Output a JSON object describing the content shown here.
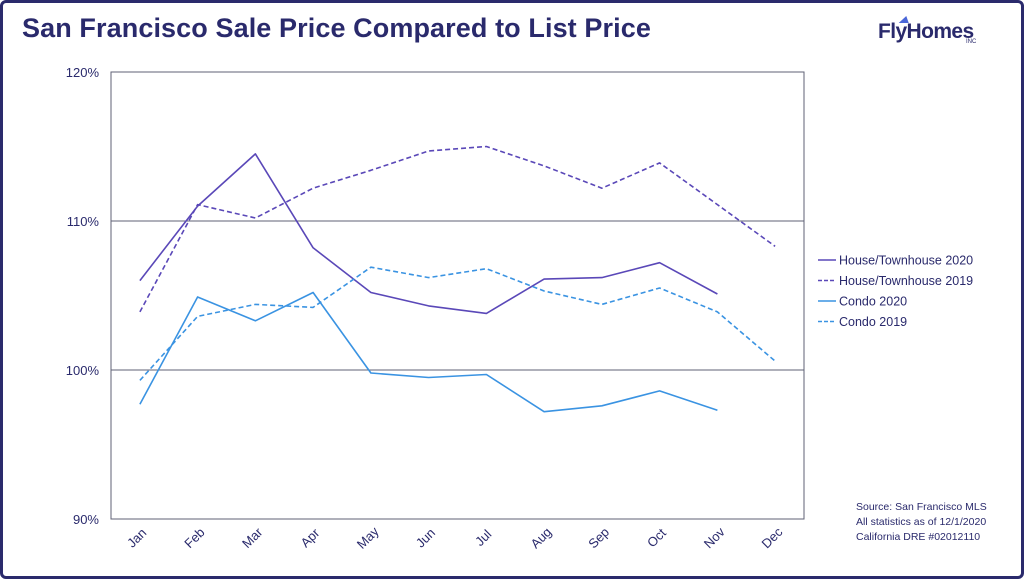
{
  "chart_data": {
    "type": "line",
    "title": "San Francisco Sale Price Compared to List Price",
    "categories": [
      "Jan",
      "Feb",
      "Mar",
      "Apr",
      "May",
      "Jun",
      "Jul",
      "Aug",
      "Sep",
      "Oct",
      "Nov",
      "Dec"
    ],
    "ylim": [
      90,
      120
    ],
    "yticks": [
      "90%",
      "100%",
      "110%",
      "120%"
    ],
    "ytick_values": [
      90,
      100,
      110,
      120
    ],
    "grid": true,
    "legend_position": "right",
    "series": [
      {
        "name": "House/Townhouse 2020",
        "color": "#5a48b8",
        "dash": false,
        "values": [
          106.0,
          111.0,
          114.5,
          108.2,
          105.2,
          104.3,
          103.8,
          106.1,
          106.2,
          107.2,
          105.1,
          null
        ]
      },
      {
        "name": "House/Townhouse 2019",
        "color": "#5a48b8",
        "dash": true,
        "values": [
          103.9,
          111.1,
          110.2,
          112.2,
          113.4,
          114.7,
          115.0,
          113.7,
          112.2,
          113.9,
          111.1,
          108.3
        ]
      },
      {
        "name": "Condo 2020",
        "color": "#3a93e2",
        "dash": false,
        "values": [
          97.7,
          104.9,
          103.3,
          105.2,
          99.8,
          99.5,
          99.7,
          97.2,
          97.6,
          98.6,
          97.3,
          null
        ]
      },
      {
        "name": "Condo 2019",
        "color": "#3a93e2",
        "dash": true,
        "values": [
          99.3,
          103.6,
          104.4,
          104.2,
          106.9,
          106.2,
          106.8,
          105.3,
          104.4,
          105.5,
          103.9,
          100.6
        ]
      }
    ]
  },
  "logo": {
    "text": "FlyHomes",
    "sub": "INC"
  },
  "source": {
    "line1": "Source: San Francisco MLS",
    "line2": "All statistics as of 12/1/2020",
    "line3": "California DRE #02012110"
  }
}
